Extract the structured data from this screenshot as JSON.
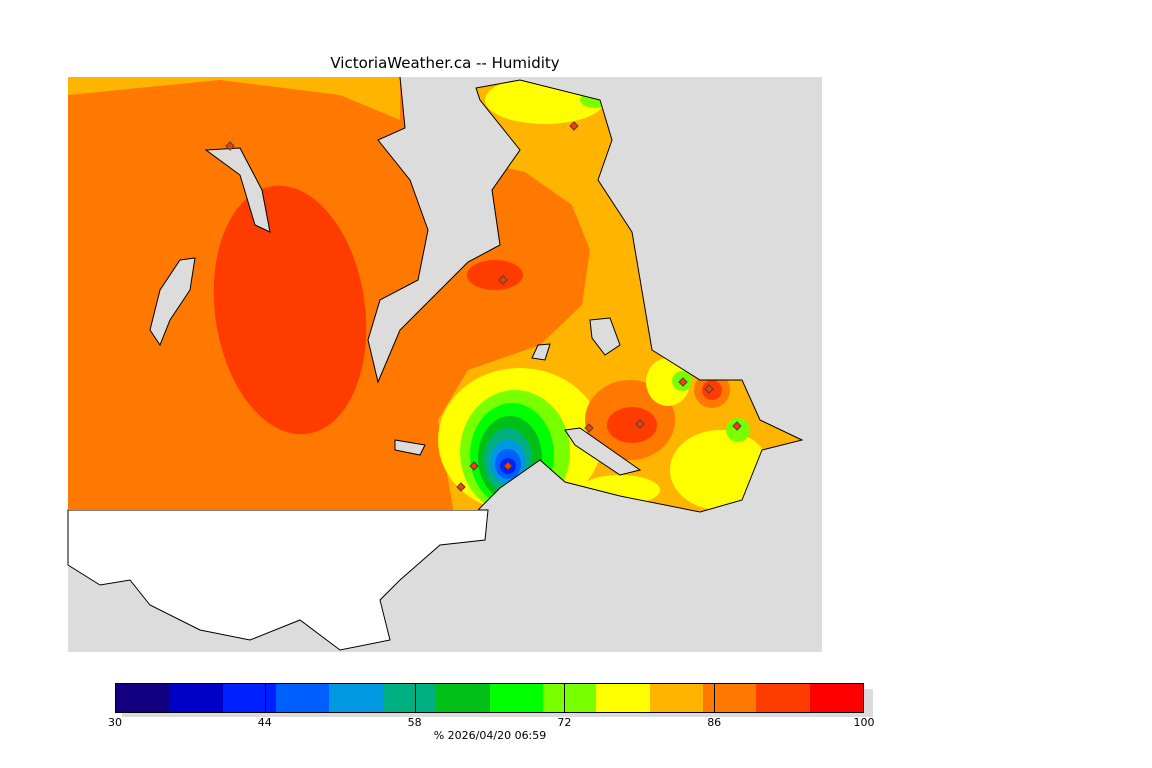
{
  "title": "VictoriaWeather.ca  --  Humidity",
  "colorbar": {
    "min": 30,
    "max": 100,
    "step": 5,
    "colors": [
      "#120080",
      "#0000c8",
      "#0020ff",
      "#0060ff",
      "#0098e0",
      "#00b080",
      "#00c018",
      "#00ff00",
      "#78ff00",
      "#ffff00",
      "#ffb400",
      "#ff7800",
      "#ff3c00",
      "#ff0000"
    ],
    "tick_labels": [
      "30",
      "44",
      "58",
      "72",
      "86",
      "100"
    ]
  },
  "footer": "%  2026/04/20 06:59"
}
